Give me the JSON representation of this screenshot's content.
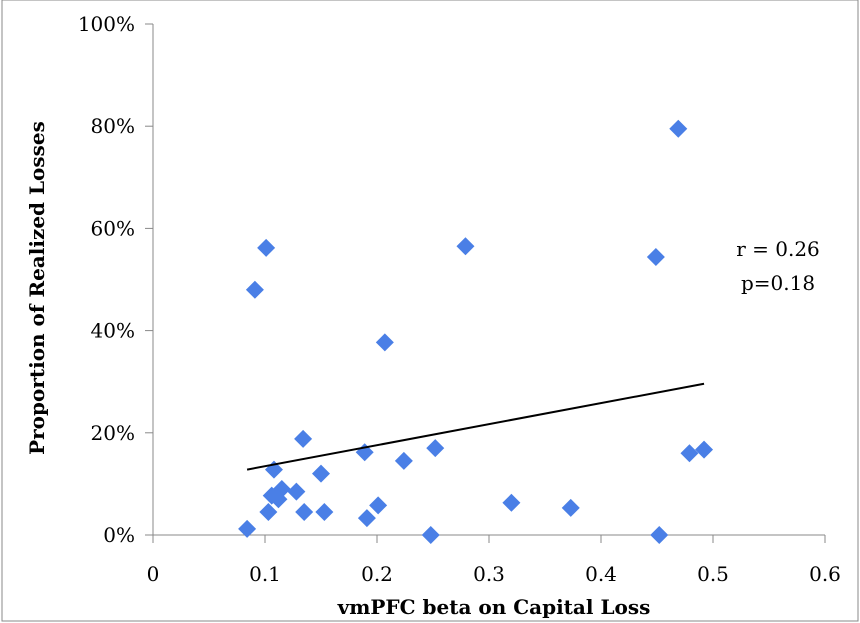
{
  "chart_data": {
    "type": "scatter",
    "title": "",
    "xlabel": "vmPFC beta on Capital Loss",
    "ylabel": "Proportion of Realized Losses",
    "xlim": [
      0,
      0.6
    ],
    "ylim": [
      0,
      1.0
    ],
    "x_ticks": [
      0,
      0.1,
      0.2,
      0.3,
      0.4,
      0.5,
      0.6
    ],
    "x_tick_labels": [
      "0",
      "0.1",
      "0.2",
      "0.3",
      "0.4",
      "0.5",
      "0.6"
    ],
    "y_ticks": [
      0,
      0.2,
      0.4,
      0.6,
      0.8,
      1.0
    ],
    "y_tick_labels": [
      "0%",
      "20%",
      "40%",
      "60%",
      "80%",
      "100%"
    ],
    "grid": false,
    "marker_color": "#4a7fe6",
    "trendline_color": "#000000",
    "annotations": [
      "r = 0.26",
      "p=0.18"
    ],
    "trendline": {
      "x": [
        0.084,
        0.492
      ],
      "y": [
        0.128,
        0.296
      ]
    },
    "series": [
      {
        "x": [
          0.084,
          0.091,
          0.101,
          0.103,
          0.106,
          0.108,
          0.112,
          0.115,
          0.128,
          0.134,
          0.135,
          0.15,
          0.153,
          0.189,
          0.191,
          0.201,
          0.207,
          0.224,
          0.248,
          0.252,
          0.279,
          0.32,
          0.373,
          0.449,
          0.452,
          0.469,
          0.479,
          0.492
        ],
        "y": [
          0.012,
          0.48,
          0.562,
          0.045,
          0.077,
          0.128,
          0.07,
          0.09,
          0.085,
          0.188,
          0.045,
          0.12,
          0.045,
          0.162,
          0.033,
          0.058,
          0.377,
          0.145,
          0.0,
          0.17,
          0.565,
          0.063,
          0.053,
          0.544,
          0.0,
          0.795,
          0.16,
          0.167
        ]
      }
    ]
  }
}
